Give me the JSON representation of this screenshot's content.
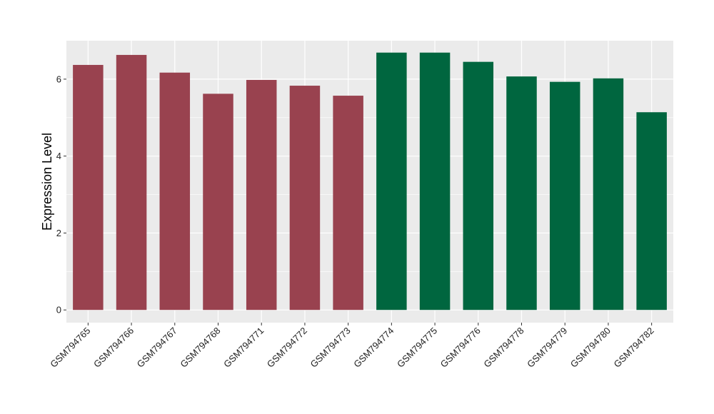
{
  "chart_data": {
    "type": "bar",
    "title": "",
    "xlabel": "",
    "ylabel": "Expression Level",
    "ylim": [
      -0.33,
      7.0
    ],
    "yticks": [
      0,
      2,
      4,
      6
    ],
    "grid": true,
    "legend": "none",
    "categories": [
      "GSM794765",
      "GSM794766",
      "GSM794767",
      "GSM794768",
      "GSM794771",
      "GSM794772",
      "GSM794773",
      "GSM794774",
      "GSM794775",
      "GSM794776",
      "GSM794778",
      "GSM794779",
      "GSM794780",
      "GSM794782"
    ],
    "values": [
      6.37,
      6.63,
      6.17,
      5.62,
      5.98,
      5.83,
      5.57,
      6.69,
      6.69,
      6.45,
      6.07,
      5.93,
      6.02,
      5.14
    ],
    "bar_colors": [
      "#99424f",
      "#99424f",
      "#99424f",
      "#99424f",
      "#99424f",
      "#99424f",
      "#99424f",
      "#00663f",
      "#00663f",
      "#00663f",
      "#00663f",
      "#00663f",
      "#00663f",
      "#00663f"
    ],
    "panel_color": "#ebebeb",
    "grid_color": "#ffffff"
  }
}
